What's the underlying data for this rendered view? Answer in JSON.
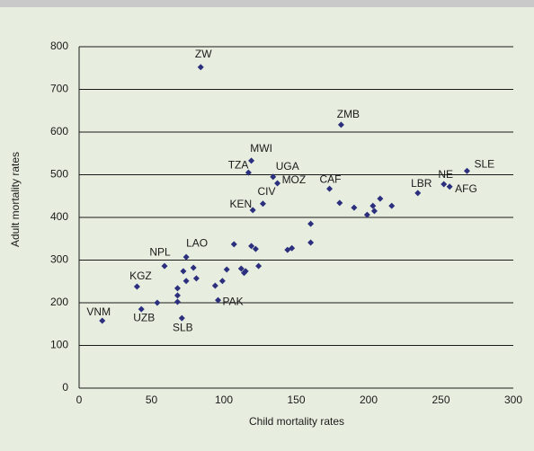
{
  "chart_data": {
    "type": "scatter",
    "x_label": "Child mortality rates",
    "y_label": "Adult mortality rates",
    "color": "#2b2f7d",
    "grid": true,
    "xlim": [
      0,
      300
    ],
    "xticks": [
      0,
      50,
      100,
      150,
      200,
      250,
      300
    ],
    "ylim": [
      0,
      800
    ],
    "yticks": [
      0,
      100,
      200,
      300,
      400,
      500,
      600,
      700,
      800
    ],
    "x": [
      84,
      181,
      119,
      117,
      134,
      137,
      127,
      120,
      173,
      234,
      252,
      256,
      268,
      74,
      59,
      40,
      16,
      43,
      71,
      96,
      54,
      68,
      72,
      74,
      79,
      81,
      68,
      68,
      94,
      99,
      102,
      107,
      112,
      114,
      115,
      119,
      122,
      124,
      144,
      147,
      160,
      160,
      180,
      190,
      199,
      203,
      204,
      208,
      216
    ],
    "values": [
      752,
      617,
      533,
      505,
      495,
      480,
      432,
      417,
      467,
      457,
      478,
      472,
      509,
      307,
      286,
      238,
      158,
      185,
      164,
      206,
      200,
      234,
      274,
      251,
      282,
      257,
      217,
      202,
      240,
      251,
      278,
      337,
      280,
      270,
      274,
      333,
      326,
      286,
      324,
      328,
      385,
      341,
      434,
      423,
      406,
      427,
      415,
      444,
      427
    ],
    "point_labels": [
      "ZW",
      "ZMB",
      "MWI",
      "TZA",
      "UGA",
      "MOZ",
      "CIV",
      "KEN",
      "CAF",
      "LBR",
      "NE",
      "AFG",
      "SLE",
      "LAO",
      "NPL",
      "KGZ",
      "VNM",
      "UZB",
      "SLB",
      "PAK",
      null,
      null,
      null,
      null,
      null,
      null,
      null,
      null,
      null,
      null,
      null,
      null,
      null,
      null,
      null,
      null,
      null,
      null,
      null,
      null,
      null,
      null,
      null,
      null,
      null,
      null,
      null,
      null,
      null
    ]
  }
}
